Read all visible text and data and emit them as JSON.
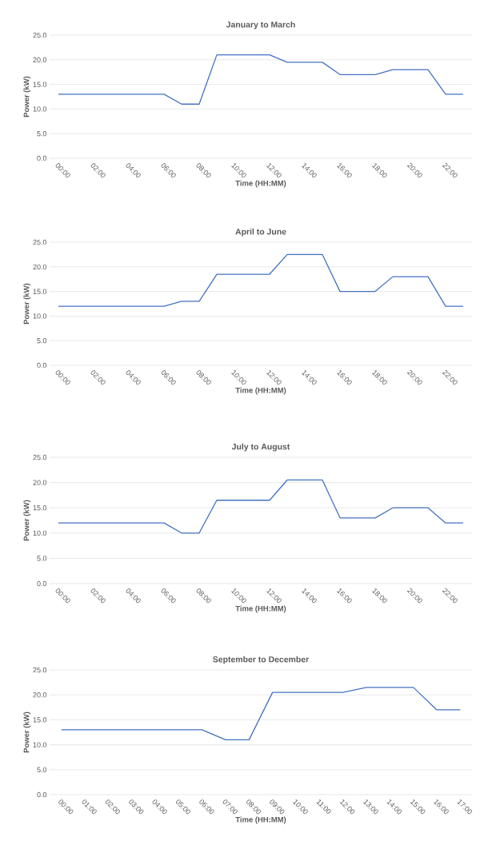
{
  "chart_data": [
    {
      "type": "line",
      "title": "January to March",
      "xlabel": "Time (HH:MM)",
      "ylabel": "Power (kW)",
      "color": "#4472c4",
      "grid": "y",
      "categories": [
        "00:00",
        null,
        "02:00",
        null,
        "04:00",
        null,
        "06:00",
        null,
        "08:00",
        null,
        "10:00",
        null,
        "12:00",
        null,
        "14:00",
        null,
        "16:00",
        null,
        "18:00",
        null,
        "20:00",
        null,
        "22:00",
        null
      ],
      "values": [
        13,
        13,
        13,
        13,
        13,
        13,
        13,
        11,
        11,
        21,
        21,
        21,
        21,
        19.5,
        19.5,
        19.5,
        17,
        17,
        17,
        18,
        18,
        18,
        13,
        13
      ],
      "ylim": [
        0,
        25
      ],
      "yticks": [
        {
          "value": 0,
          "label": "0.0"
        },
        {
          "value": 5,
          "label": "5.0"
        },
        {
          "value": 10,
          "label": "10.0"
        },
        {
          "value": 15,
          "label": "15.0"
        },
        {
          "value": 20,
          "label": "20.0"
        },
        {
          "value": 25,
          "label": "25.0"
        }
      ]
    },
    {
      "type": "line",
      "title": "April to June",
      "xlabel": "Time (HH:MM)",
      "ylabel": "Power (kW)",
      "color": "#4472c4",
      "grid": "y",
      "categories": [
        "00:00",
        null,
        "02:00",
        null,
        "04:00",
        null,
        "06:00",
        null,
        "08:00",
        null,
        "10:00",
        null,
        "12:00",
        null,
        "14:00",
        null,
        "16:00",
        null,
        "18:00",
        null,
        "20:00",
        null,
        "22:00",
        null
      ],
      "values": [
        12,
        12,
        12,
        12,
        12,
        12,
        12,
        13,
        13,
        18.5,
        18.5,
        18.5,
        18.5,
        22.5,
        22.5,
        22.5,
        15,
        15,
        15,
        18,
        18,
        18,
        12,
        12
      ],
      "ylim": [
        0,
        25
      ],
      "yticks": [
        {
          "value": 0,
          "label": "0.0"
        },
        {
          "value": 5,
          "label": "5.0"
        },
        {
          "value": 10,
          "label": "10.0"
        },
        {
          "value": 15,
          "label": "15.0"
        },
        {
          "value": 20,
          "label": "20.0"
        },
        {
          "value": 25,
          "label": "25.0"
        }
      ]
    },
    {
      "type": "line",
      "title": "July to August",
      "xlabel": "Time (HH:MM)",
      "ylabel": "Power (kW)",
      "color": "#4472c4",
      "grid": "y",
      "categories": [
        "00:00",
        null,
        "02:00",
        null,
        "04:00",
        null,
        "06:00",
        null,
        "08:00",
        null,
        "10:00",
        null,
        "12:00",
        null,
        "14:00",
        null,
        "16:00",
        null,
        "18:00",
        null,
        "20:00",
        null,
        "22:00",
        null
      ],
      "values": [
        12,
        12,
        12,
        12,
        12,
        12,
        12,
        10,
        10,
        16.5,
        16.5,
        16.5,
        16.5,
        20.5,
        20.5,
        20.5,
        13,
        13,
        13,
        15,
        15,
        15,
        12,
        12
      ],
      "ylim": [
        0,
        25
      ],
      "yticks": [
        {
          "value": 0,
          "label": "0.0"
        },
        {
          "value": 5,
          "label": "5.0"
        },
        {
          "value": 10,
          "label": "10.0"
        },
        {
          "value": 15,
          "label": "15.0"
        },
        {
          "value": 20,
          "label": "20.0"
        },
        {
          "value": 25,
          "label": "25.0"
        }
      ]
    },
    {
      "type": "line",
      "title": "September to December",
      "xlabel": "Time (HH:MM)",
      "ylabel": "Power (kW)",
      "color": "#4472c4",
      "grid": "y",
      "categories": [
        "00:00",
        "01:00",
        "02:00",
        "03:00",
        "04:00",
        "05:00",
        "06:00",
        "07:00",
        "08:00",
        "09:00",
        "10:00",
        "11:00",
        "12:00",
        "13:00",
        "14:00",
        "15:00",
        "16:00",
        "17:00"
      ],
      "values": [
        13,
        13,
        13,
        13,
        13,
        13,
        13,
        11,
        11,
        20.5,
        20.5,
        20.5,
        20.5,
        21.5,
        21.5,
        21.5,
        17,
        17
      ],
      "ylim": [
        0,
        25
      ],
      "yticks": [
        {
          "value": 0,
          "label": "0.0"
        },
        {
          "value": 5,
          "label": "5.0"
        },
        {
          "value": 10,
          "label": "10.0"
        },
        {
          "value": 15,
          "label": "15.0"
        },
        {
          "value": 20,
          "label": "20.0"
        },
        {
          "value": 25,
          "label": "25.0"
        }
      ]
    }
  ]
}
